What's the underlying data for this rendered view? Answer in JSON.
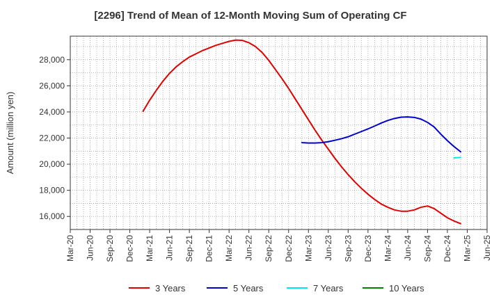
{
  "chart_data": {
    "type": "line",
    "title": "[2296]  Trend of Mean of 12-Month Moving Sum of Operating CF",
    "xlabel": "",
    "ylabel": "Amount (million yen)",
    "ylim": [
      15000,
      29800
    ],
    "grid": true,
    "legend_position": "bottom",
    "x_ticks": [
      "Mar-20",
      "Jun-20",
      "Sep-20",
      "Dec-20",
      "Mar-21",
      "Jun-21",
      "Sep-21",
      "Dec-21",
      "Mar-22",
      "Jun-22",
      "Sep-22",
      "Dec-22",
      "Mar-23",
      "Jun-23",
      "Sep-23",
      "Dec-23",
      "Mar-24",
      "Jun-24",
      "Sep-24",
      "Dec-24",
      "Mar-25",
      "Jun-25"
    ],
    "y_ticks": [
      16000,
      18000,
      20000,
      22000,
      24000,
      26000,
      28000
    ],
    "y_tick_labels": [
      "16,000",
      "18,000",
      "20,000",
      "22,000",
      "24,000",
      "26,000",
      "28,000"
    ],
    "series": [
      {
        "name": "3 Years",
        "color": "#e00000",
        "points": [
          [
            "Feb-21",
            24050
          ],
          [
            "Mar-21",
            24900
          ],
          [
            "Apr-21",
            25650
          ],
          [
            "May-21",
            26350
          ],
          [
            "Jun-21",
            26950
          ],
          [
            "Jul-21",
            27450
          ],
          [
            "Aug-21",
            27850
          ],
          [
            "Sep-21",
            28200
          ],
          [
            "Oct-21",
            28450
          ],
          [
            "Nov-21",
            28700
          ],
          [
            "Dec-21",
            28900
          ],
          [
            "Jan-22",
            29100
          ],
          [
            "Feb-22",
            29250
          ],
          [
            "Mar-22",
            29400
          ],
          [
            "Apr-22",
            29500
          ],
          [
            "May-22",
            29480
          ],
          [
            "Jun-22",
            29300
          ],
          [
            "Jul-22",
            29000
          ],
          [
            "Aug-22",
            28550
          ],
          [
            "Sep-22",
            27950
          ],
          [
            "Oct-22",
            27250
          ],
          [
            "Nov-22",
            26550
          ],
          [
            "Dec-22",
            25800
          ],
          [
            "Jan-23",
            25000
          ],
          [
            "Feb-23",
            24200
          ],
          [
            "Mar-23",
            23400
          ],
          [
            "Apr-23",
            22600
          ],
          [
            "May-23",
            21850
          ],
          [
            "Jun-23",
            21150
          ],
          [
            "Jul-23",
            20450
          ],
          [
            "Aug-23",
            19800
          ],
          [
            "Sep-23",
            19200
          ],
          [
            "Oct-23",
            18650
          ],
          [
            "Nov-23",
            18150
          ],
          [
            "Dec-23",
            17700
          ],
          [
            "Jan-24",
            17300
          ],
          [
            "Feb-24",
            16950
          ],
          [
            "Mar-24",
            16700
          ],
          [
            "Apr-24",
            16500
          ],
          [
            "May-24",
            16400
          ],
          [
            "Jun-24",
            16400
          ],
          [
            "Jul-24",
            16500
          ],
          [
            "Aug-24",
            16700
          ],
          [
            "Sep-24",
            16800
          ],
          [
            "Oct-24",
            16600
          ],
          [
            "Nov-24",
            16250
          ],
          [
            "Dec-24",
            15900
          ],
          [
            "Jan-25",
            15650
          ],
          [
            "Feb-25",
            15450
          ]
        ]
      },
      {
        "name": "5 Years",
        "color": "#0000cc",
        "points": [
          [
            "Feb-23",
            21650
          ],
          [
            "Mar-23",
            21620
          ],
          [
            "Apr-23",
            21620
          ],
          [
            "May-23",
            21650
          ],
          [
            "Jun-23",
            21720
          ],
          [
            "Jul-23",
            21830
          ],
          [
            "Aug-23",
            21950
          ],
          [
            "Sep-23",
            22100
          ],
          [
            "Oct-23",
            22300
          ],
          [
            "Nov-23",
            22500
          ],
          [
            "Dec-23",
            22700
          ],
          [
            "Jan-24",
            22920
          ],
          [
            "Feb-24",
            23150
          ],
          [
            "Mar-24",
            23350
          ],
          [
            "Apr-24",
            23500
          ],
          [
            "May-24",
            23600
          ],
          [
            "Jun-24",
            23620
          ],
          [
            "Jul-24",
            23580
          ],
          [
            "Aug-24",
            23450
          ],
          [
            "Sep-24",
            23200
          ],
          [
            "Oct-24",
            22850
          ],
          [
            "Nov-24",
            22300
          ],
          [
            "Dec-24",
            21800
          ],
          [
            "Jan-25",
            21350
          ],
          [
            "Feb-25",
            20950
          ]
        ]
      },
      {
        "name": "7 Years",
        "color": "#00e5ee",
        "points": [
          [
            "Jan-25",
            20480
          ],
          [
            "Feb-25",
            20520
          ]
        ]
      },
      {
        "name": "10 Years",
        "color": "#008000",
        "points": []
      }
    ]
  }
}
